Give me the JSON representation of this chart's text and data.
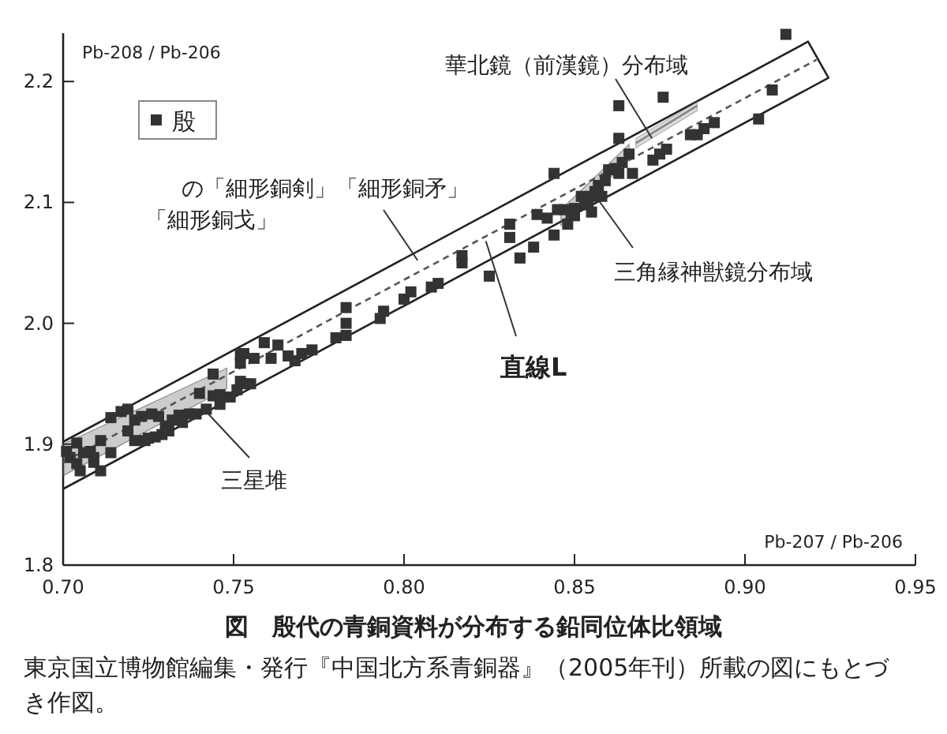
{
  "chart_data": {
    "type": "scatter",
    "title": "図　殷代の青銅資料が分布する鉛同位体比領域",
    "xlabel": "Pb-207 / Pb-206",
    "ylabel": "Pb-208 / Pb-206",
    "xlim": [
      0.7,
      0.95
    ],
    "ylim": [
      1.8,
      2.24
    ],
    "xticks": [
      {
        "value": 0.7,
        "label": "0.70"
      },
      {
        "value": 0.75,
        "label": "0.75"
      },
      {
        "value": 0.8,
        "label": "0.80"
      },
      {
        "value": 0.85,
        "label": "0.85"
      },
      {
        "value": 0.9,
        "label": "0.90"
      },
      {
        "value": 0.95,
        "label": "0.95"
      }
    ],
    "yticks": [
      1.8,
      1.9,
      {
        "value": 2,
        "label": "2.0"
      },
      2.1,
      2.2
    ],
    "grid": false,
    "legend": "top left",
    "series": [
      {
        "type": "line",
        "color": "#222222",
        "line_style": "solid",
        "marker": "none",
        "x": [
          0.7,
          0.9185,
          0.9245,
          0.7
        ],
        "values": [
          1.902,
          2.233,
          2.203,
          1.863
        ]
      },
      {
        "type": "line",
        "color": "#555555",
        "line_style": "dashed",
        "marker": "none",
        "x": [
          0.7,
          0.748,
          0.8,
          0.846,
          0.866,
          0.921
        ],
        "values": [
          1.885,
          1.957,
          2.036,
          2.105,
          2.135,
          2.218
        ],
        "lower": [
          1.874,
          1.946,
          null,
          2.081,
          2.135,
          null
        ],
        "upper": [
          1.9,
          1.963,
          null,
          2.094,
          2.148,
          null
        ]
      },
      {
        "type": "line",
        "color": "#888888",
        "line_style": "solid",
        "marker": "none",
        "x": [
          0.868,
          0.886
        ],
        "values": [
          2.149,
          2.18
        ],
        "lower": [
          2.145,
          2.176
        ],
        "upper": [
          2.153,
          2.183
        ]
      },
      {
        "name": "殷",
        "color": "#333333",
        "marker": "square",
        "x": [
          0.701,
          0.702,
          0.704,
          0.704,
          0.705,
          0.706,
          0.708,
          0.709,
          0.709,
          0.711,
          0.711,
          0.714,
          0.714,
          0.717,
          0.719,
          0.719,
          0.721,
          0.721,
          0.723,
          0.724,
          0.725,
          0.726,
          0.727,
          0.728,
          0.729,
          0.73,
          0.731,
          0.732,
          0.734,
          0.735,
          0.737,
          0.739,
          0.74,
          0.742,
          0.744,
          0.744,
          0.746,
          0.746,
          0.749,
          0.751,
          0.752,
          0.753,
          0.755,
          0.752,
          0.752,
          0.753,
          0.756,
          0.759,
          0.761,
          0.763,
          0.766,
          0.768,
          0.77,
          0.773,
          0.78,
          0.783,
          0.783,
          0.783,
          0.793,
          0.794,
          0.8,
          0.802,
          0.808,
          0.81,
          0.817,
          0.817,
          0.912,
          0.908,
          0.904,
          0.891,
          0.888,
          0.886,
          0.884,
          0.876,
          0.877,
          0.875,
          0.873,
          0.863,
          0.863,
          0.866,
          0.864,
          0.862,
          0.867,
          0.86,
          0.863,
          0.844,
          0.859,
          0.857,
          0.856,
          0.855,
          0.854,
          0.852,
          0.853,
          0.85,
          0.85,
          0.849,
          0.855,
          0.858,
          0.847,
          0.845,
          0.848,
          0.844,
          0.842,
          0.839,
          0.831,
          0.831,
          0.838,
          0.834,
          0.825
        ],
        "values": [
          1.894,
          1.889,
          1.901,
          1.884,
          1.878,
          1.893,
          1.894,
          1.889,
          1.885,
          1.903,
          1.878,
          1.893,
          1.922,
          1.927,
          1.929,
          1.911,
          1.92,
          1.903,
          1.923,
          1.903,
          1.905,
          1.925,
          1.906,
          1.923,
          1.908,
          1.915,
          1.911,
          1.92,
          1.924,
          1.918,
          1.925,
          1.925,
          1.942,
          1.929,
          1.958,
          1.94,
          1.941,
          1.933,
          1.939,
          1.945,
          1.952,
          1.95,
          1.95,
          1.974,
          1.967,
          1.975,
          1.971,
          1.984,
          1.971,
          1.982,
          1.973,
          1.969,
          1.975,
          1.978,
          1.988,
          2.013,
          2.0,
          1.99,
          2.004,
          2.01,
          2.02,
          2.026,
          2.03,
          2.033,
          2.056,
          2.05,
          2.239,
          2.193,
          2.169,
          2.166,
          2.161,
          2.156,
          2.156,
          2.187,
          2.144,
          2.14,
          2.135,
          2.18,
          2.153,
          2.14,
          2.133,
          2.128,
          2.124,
          2.127,
          2.124,
          2.124,
          2.118,
          2.114,
          2.109,
          2.105,
          2.101,
          2.105,
          2.098,
          2.095,
          2.089,
          2.092,
          2.092,
          2.105,
          2.094,
          2.094,
          2.082,
          2.073,
          2.087,
          2.09,
          2.082,
          2.071,
          2.063,
          2.054,
          2.039
        ]
      }
    ],
    "annotations": [
      {
        "text": "華北鏡（前漢鏡）分布域",
        "x": 0.8727,
        "y": 2.153
      },
      {
        "text": "の「細形銅剣」「細形銅矛」「細形銅戈」",
        "x": 0.804,
        "y": 2.052
      },
      {
        "text": "三角縁神獣鏡分布域",
        "x": 0.857,
        "y": 2.102
      },
      {
        "text": "直線L",
        "x": 0.824,
        "y": 2.068
      },
      {
        "text": "三星堆",
        "x": 0.7426,
        "y": 1.925
      },
      "東京国立博物館編集・発行『中国北方系青銅器』（2005年刊）所載の図にもとづき作図。"
    ]
  }
}
